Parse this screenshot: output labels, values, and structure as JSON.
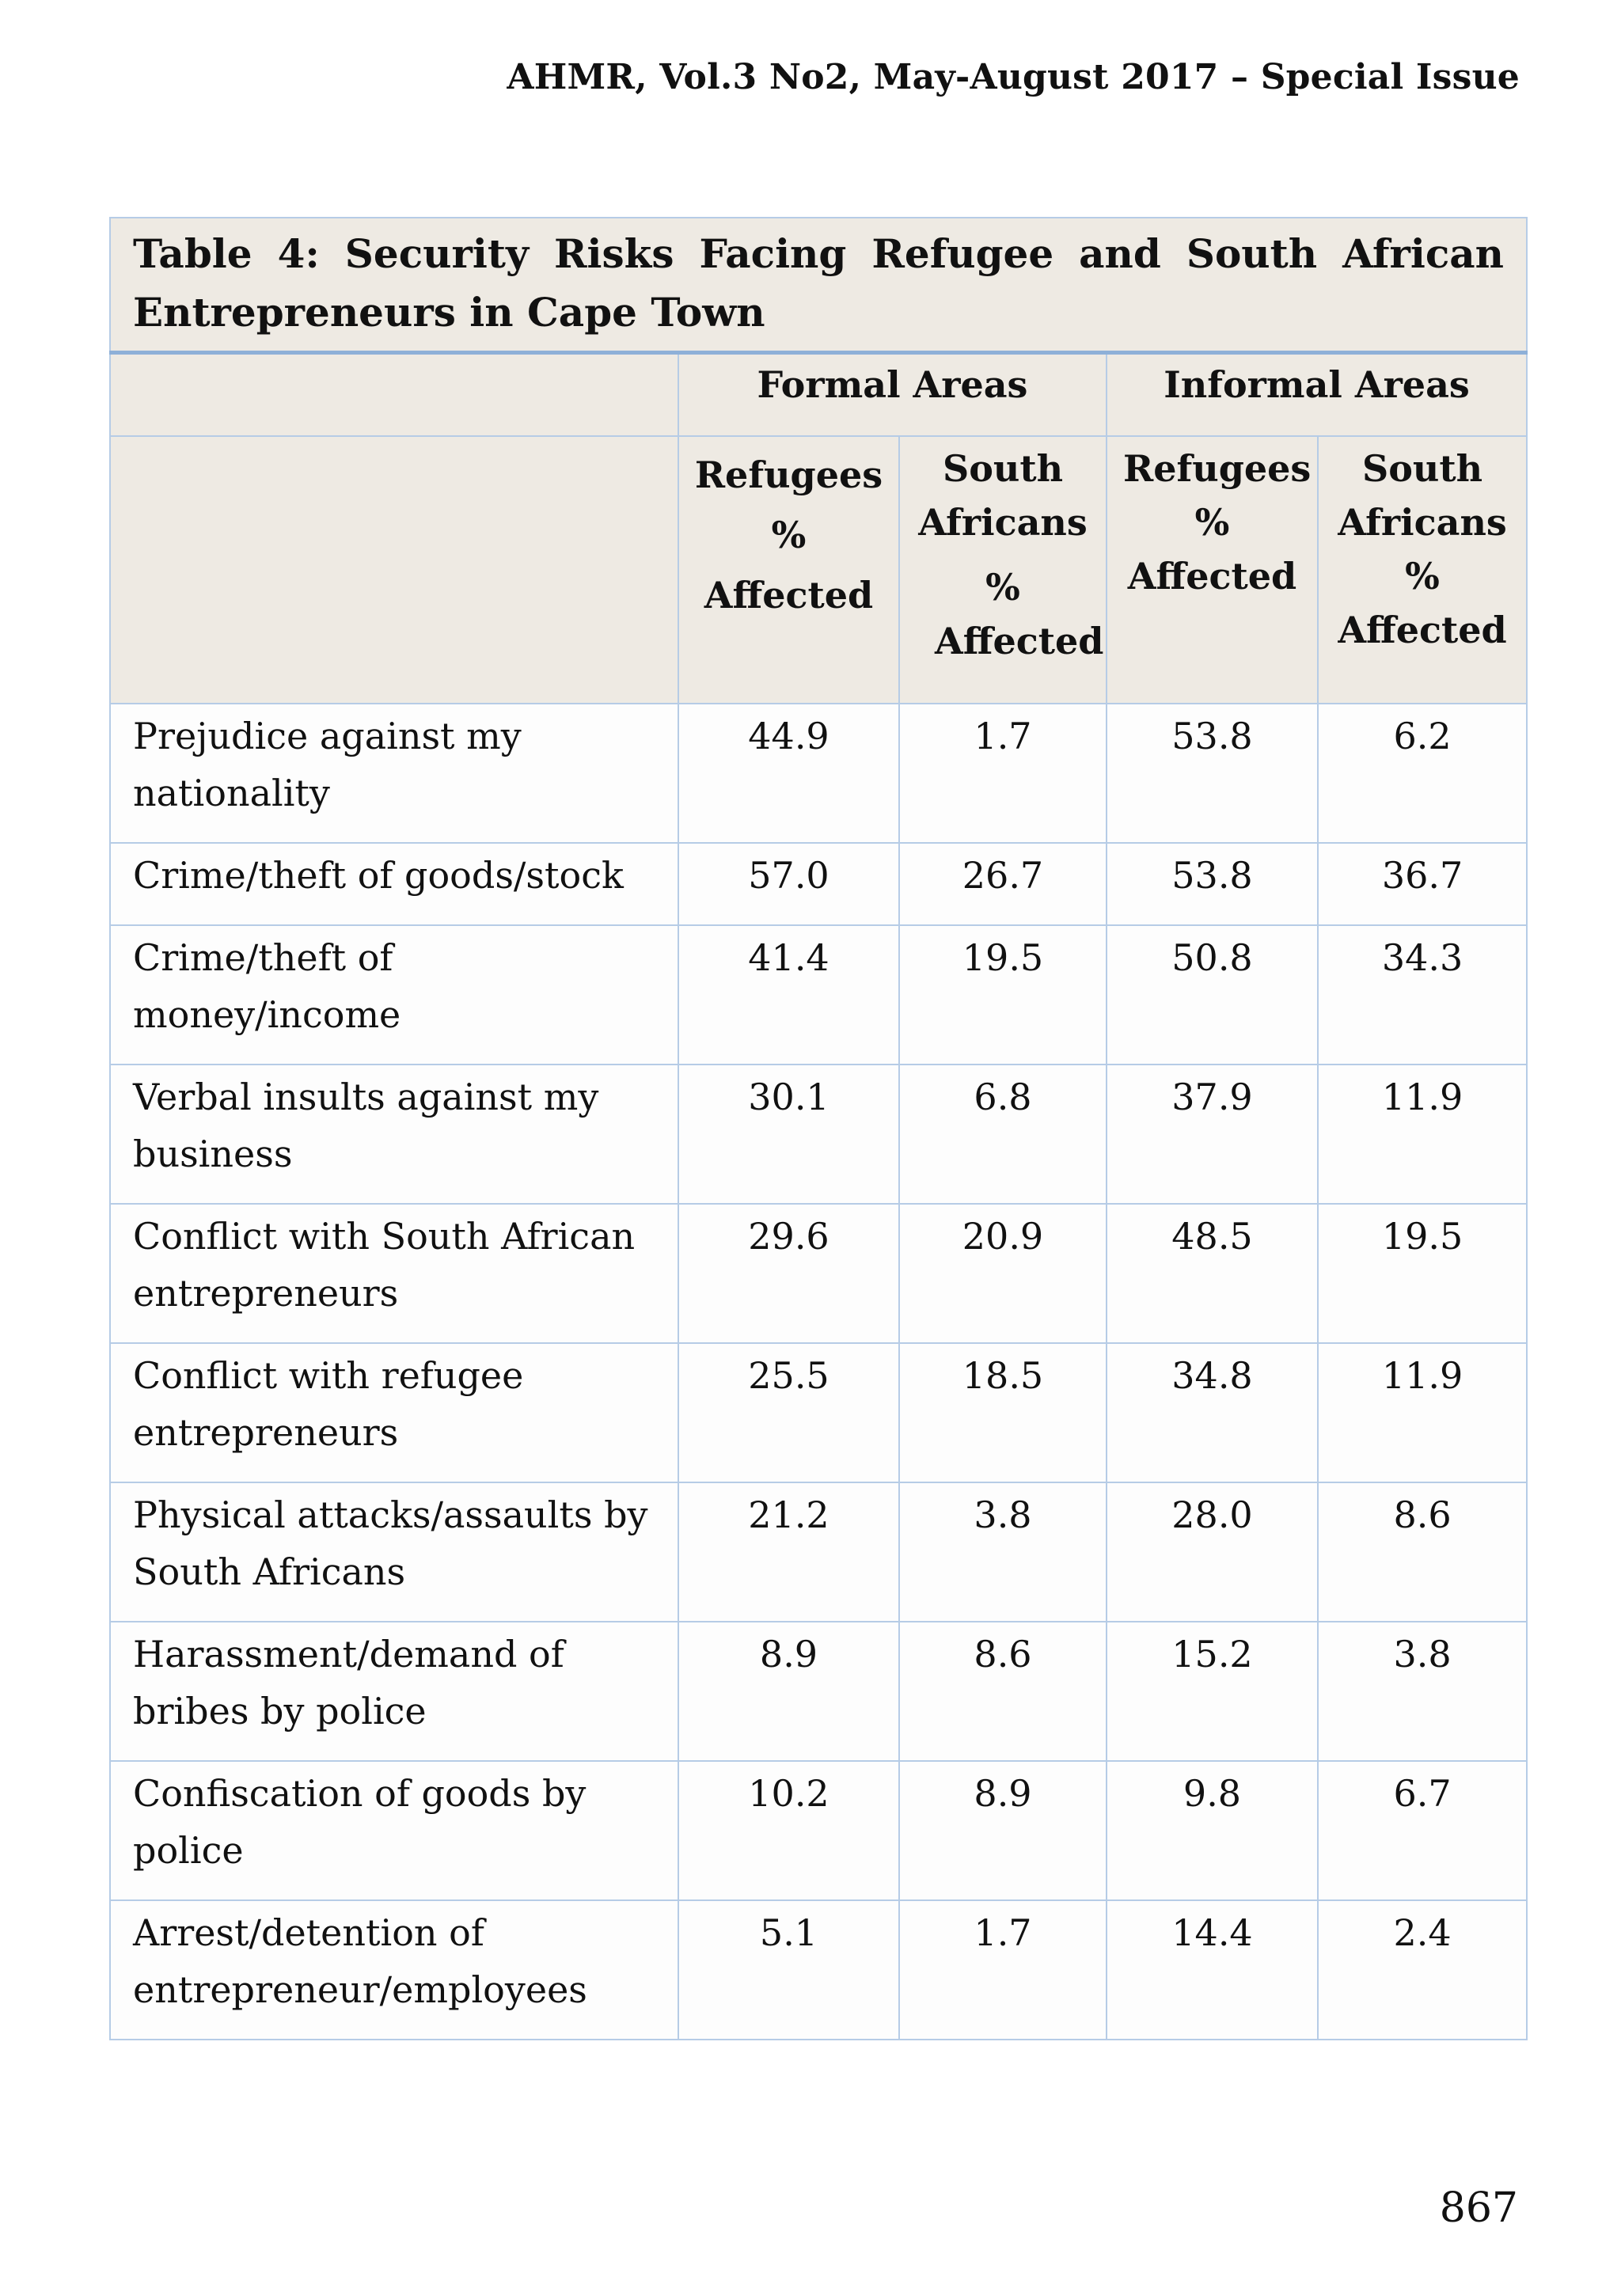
{
  "header": {
    "journal": "AHMR, Vol.3 No2, May-August 2017 – Special Issue"
  },
  "table": {
    "caption": "Table 4: Security Risks Facing Refugee and South African Entrepreneurs in Cape Town",
    "groups": [
      "Formal Areas",
      "Informal Areas"
    ],
    "subheaders": {
      "formal_refugees": "Refugees % Affected",
      "formal_south_africans_a": "South Africans",
      "formal_south_africans_b": "% Affected",
      "informal_refugees": "Refugees % Affected",
      "informal_south_africans": "South Africans % Affected"
    },
    "rows": [
      {
        "label": "Prejudice against my nationality",
        "values": [
          "44.9",
          "1.7",
          "53.8",
          "6.2"
        ]
      },
      {
        "label": "Crime/theft of goods/stock",
        "values": [
          "57.0",
          "26.7",
          "53.8",
          "36.7"
        ]
      },
      {
        "label": "Crime/theft of money/income",
        "values": [
          "41.4",
          "19.5",
          "50.8",
          "34.3"
        ]
      },
      {
        "label": "Verbal insults against my business",
        "values": [
          "30.1",
          "6.8",
          "37.9",
          "11.9"
        ]
      },
      {
        "label": "Conflict with South African entrepreneurs",
        "values": [
          "29.6",
          "20.9",
          "48.5",
          "19.5"
        ]
      },
      {
        "label": "Conflict with refugee entrepreneurs",
        "values": [
          "25.5",
          "18.5",
          "34.8",
          "11.9"
        ]
      },
      {
        "label": "Physical attacks/assaults by South Africans",
        "values": [
          "21.2",
          "3.8",
          "28.0",
          "8.6"
        ]
      },
      {
        "label": "Harassment/demand of bribes by police",
        "values": [
          "8.9",
          "8.6",
          "15.2",
          "3.8"
        ]
      },
      {
        "label": "Confiscation of goods by police",
        "values": [
          "10.2",
          "8.9",
          "9.8",
          "6.7"
        ]
      },
      {
        "label": "Arrest/detention of entrepreneur/employees",
        "values": [
          "5.1",
          "1.7",
          "14.4",
          "2.4"
        ]
      }
    ]
  },
  "footer": {
    "page_number": "867"
  }
}
